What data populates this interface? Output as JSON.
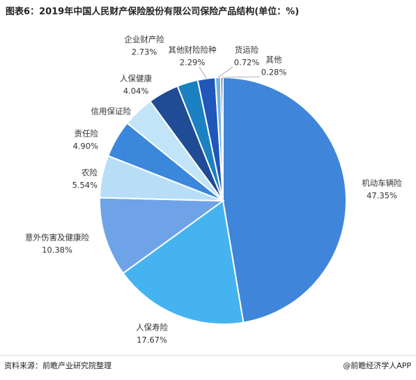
{
  "chart_data": {
    "type": "pie",
    "title": "图表6：2019年中国人民财产保险股份有限公司保险产品结构(单位：%)",
    "categories": [
      "机动车辆险",
      "人保寿险",
      "意外伤害及健康险",
      "农险",
      "责任险",
      "信用保证险",
      "人保健康",
      "企业财产险",
      "其他财险险种",
      "货运险",
      "其他"
    ],
    "values": [
      47.35,
      17.67,
      10.38,
      5.54,
      4.9,
      4.1,
      4.04,
      2.73,
      2.29,
      0.72,
      0.28
    ],
    "value_labels": [
      "47.35%",
      "17.67%",
      "10.38%",
      "5.54%",
      "4.90%",
      null,
      "4.04%",
      "2.73%",
      "2.29%",
      "0.72%",
      "0.28%"
    ],
    "colors": [
      "#3f86da",
      "#45b3f0",
      "#6ea3e8",
      "#b8def7",
      "#3a87dc",
      "#c2e4f9",
      "#1f4c94",
      "#1b81c2",
      "#1f57ba",
      "#6fb2e2",
      "#2b3f82"
    ],
    "source": "资料来源：前瞻产业研究院整理",
    "credit": "@前瞻经济学人APP"
  }
}
